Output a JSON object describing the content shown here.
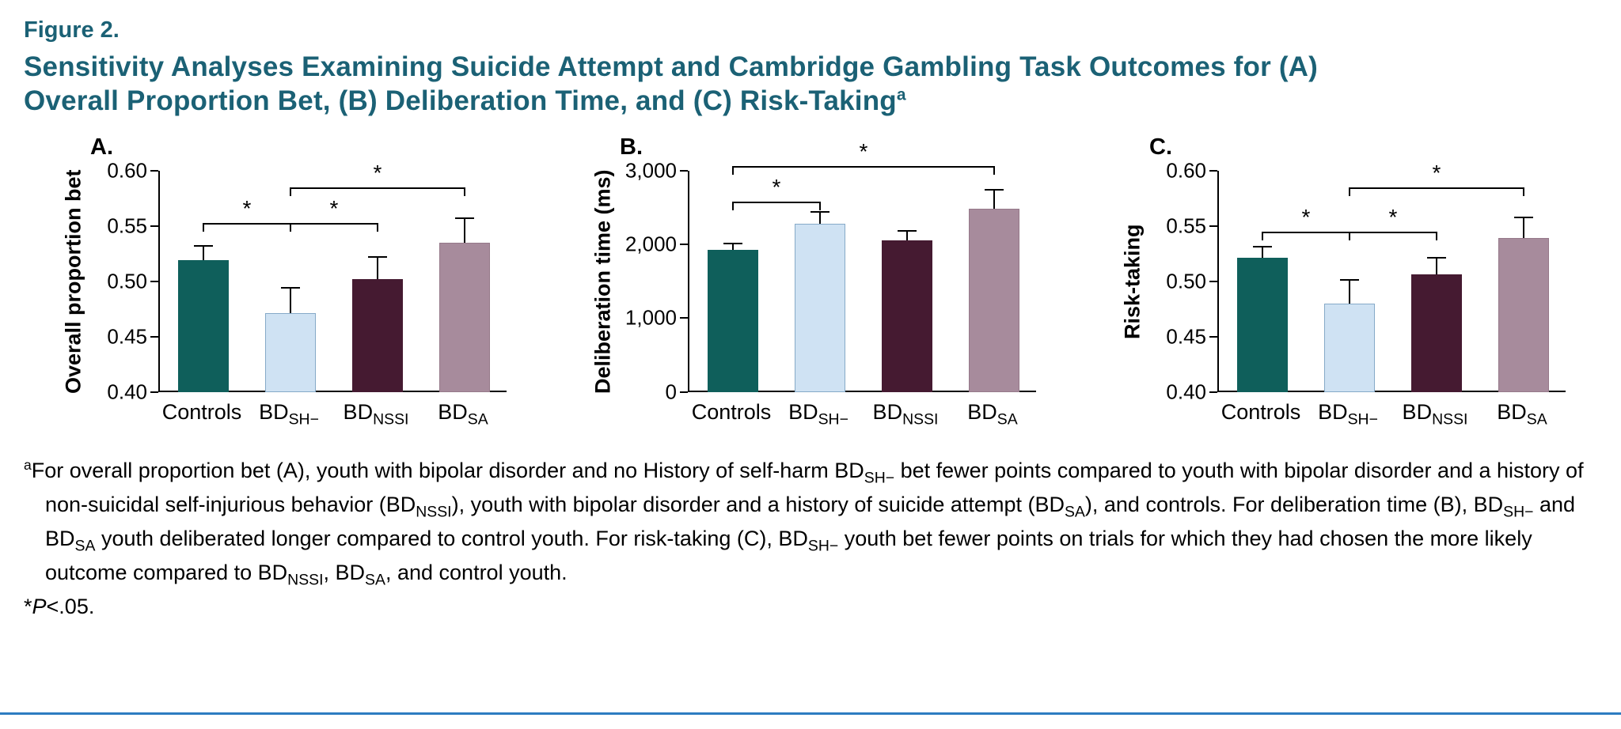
{
  "figure": {
    "label": "Figure 2.",
    "title_line1": "Sensitivity Analyses Examining Suicide Attempt and Cambridge Gambling Task Outcomes for (A)",
    "title_line2": "Overall Proportion Bet, (B) Deliberation Time, and (C) Risk-Taking",
    "title_superscript": "a"
  },
  "colors": {
    "title_teal": "#1b6175",
    "axis": "#000000",
    "bottom_rule": "#2d7cc1",
    "bar_controls": "#0f5f5b",
    "bar_bd_sh": "#cfe2f3",
    "bar_bd_nssi": "#451a31",
    "bar_bd_sa": "#a78b9c"
  },
  "chart_data": [
    {
      "id": "A",
      "panel_label": "A.",
      "type": "bar",
      "title": "",
      "xlabel": "",
      "ylabel": "Overall proportion bet",
      "ylim": [
        0.4,
        0.6
      ],
      "yticks": [
        0.4,
        0.45,
        0.5,
        0.55,
        0.6
      ],
      "ytick_labels": [
        "0.40",
        "0.45",
        "0.50",
        "0.55",
        "0.60"
      ],
      "grid": false,
      "categories": [
        {
          "text": "Controls",
          "sub": "",
          "fill": "#0f5f5b",
          "border": "#0f5f5b"
        },
        {
          "text": "BD",
          "sub": "SH−",
          "fill": "#cfe2f3",
          "border": "#86aac8"
        },
        {
          "text": "BD",
          "sub": "NSSI",
          "fill": "#451a31",
          "border": "#451a31"
        },
        {
          "text": "BD",
          "sub": "SA",
          "fill": "#a78b9c",
          "border": "#96798a"
        }
      ],
      "values": [
        0.519,
        0.471,
        0.502,
        0.535
      ],
      "errors": [
        0.013,
        0.023,
        0.02,
        0.022
      ],
      "brackets": [
        {
          "from": 0,
          "to": 1,
          "y": 0.553,
          "label": "*"
        },
        {
          "from": 1,
          "to": 2,
          "y": 0.553,
          "label": "*"
        },
        {
          "from": 1,
          "to": 3,
          "y": 0.585,
          "label": "*"
        }
      ]
    },
    {
      "id": "B",
      "panel_label": "B.",
      "type": "bar",
      "title": "",
      "xlabel": "",
      "ylabel": "Deliberation time (ms)",
      "ylim": [
        0,
        3000
      ],
      "yticks": [
        0,
        1000,
        2000,
        3000
      ],
      "ytick_labels": [
        "0",
        "1,000",
        "2,000",
        "3,000"
      ],
      "grid": false,
      "categories": [
        {
          "text": "Controls",
          "sub": "",
          "fill": "#0f5f5b",
          "border": "#0f5f5b"
        },
        {
          "text": "BD",
          "sub": "SH−",
          "fill": "#cfe2f3",
          "border": "#86aac8"
        },
        {
          "text": "BD",
          "sub": "NSSI",
          "fill": "#451a31",
          "border": "#451a31"
        },
        {
          "text": "BD",
          "sub": "SA",
          "fill": "#a78b9c",
          "border": "#96798a"
        }
      ],
      "values": [
        1930,
        2280,
        2060,
        2480
      ],
      "errors": [
        80,
        160,
        120,
        260
      ],
      "brackets": [
        {
          "from": 0,
          "to": 1,
          "y": 2580,
          "label": "*"
        },
        {
          "from": 0,
          "to": 3,
          "y": 3060,
          "label": "*"
        }
      ]
    },
    {
      "id": "C",
      "panel_label": "C.",
      "type": "bar",
      "title": "",
      "xlabel": "",
      "ylabel": "Risk-taking",
      "ylim": [
        0.4,
        0.6
      ],
      "yticks": [
        0.4,
        0.45,
        0.5,
        0.55,
        0.6
      ],
      "ytick_labels": [
        "0.40",
        "0.45",
        "0.50",
        "0.55",
        "0.60"
      ],
      "grid": false,
      "categories": [
        {
          "text": "Controls",
          "sub": "",
          "fill": "#0f5f5b",
          "border": "#0f5f5b"
        },
        {
          "text": "BD",
          "sub": "SH−",
          "fill": "#cfe2f3",
          "border": "#86aac8"
        },
        {
          "text": "BD",
          "sub": "NSSI",
          "fill": "#451a31",
          "border": "#451a31"
        },
        {
          "text": "BD",
          "sub": "SA",
          "fill": "#a78b9c",
          "border": "#96798a"
        }
      ],
      "values": [
        0.521,
        0.48,
        0.506,
        0.539
      ],
      "errors": [
        0.01,
        0.021,
        0.015,
        0.019
      ],
      "brackets": [
        {
          "from": 0,
          "to": 1,
          "y": 0.545,
          "label": "*"
        },
        {
          "from": 1,
          "to": 2,
          "y": 0.545,
          "label": "*"
        },
        {
          "from": 1,
          "to": 3,
          "y": 0.585,
          "label": "*"
        }
      ]
    }
  ],
  "footnote": {
    "segments": [
      {
        "t": "a",
        "sup": true
      },
      {
        "t": "For overall proportion bet (A), youth with bipolar disorder and no History of self-harm BD"
      },
      {
        "t": "SH−",
        "sub": true
      },
      {
        "t": " bet fewer points compared to youth with bipolar disorder and a history of non-suicidal self-injurious behavior (BD"
      },
      {
        "t": "NSSI",
        "sub": true
      },
      {
        "t": "), youth with bipolar disorder and a history of suicide attempt (BD"
      },
      {
        "t": "SA",
        "sub": true
      },
      {
        "t": "), and controls. For deliberation time (B), BD"
      },
      {
        "t": "SH−",
        "sub": true
      },
      {
        "t": " and BD"
      },
      {
        "t": "SA",
        "sub": true
      },
      {
        "t": " youth deliberated longer compared to control youth. For risk-taking (C), BD"
      },
      {
        "t": "SH−",
        "sub": true
      },
      {
        "t": " youth bet fewer points on trials for which they had chosen the more likely outcome compared to BD"
      },
      {
        "t": "NSSI",
        "sub": true
      },
      {
        "t": ", BD"
      },
      {
        "t": "SA",
        "sub": true
      },
      {
        "t": ", and control youth."
      }
    ]
  },
  "significance_note": {
    "segments": [
      {
        "t": "*"
      },
      {
        "t": "P",
        "italic": true
      },
      {
        "t": "<.05."
      }
    ]
  }
}
